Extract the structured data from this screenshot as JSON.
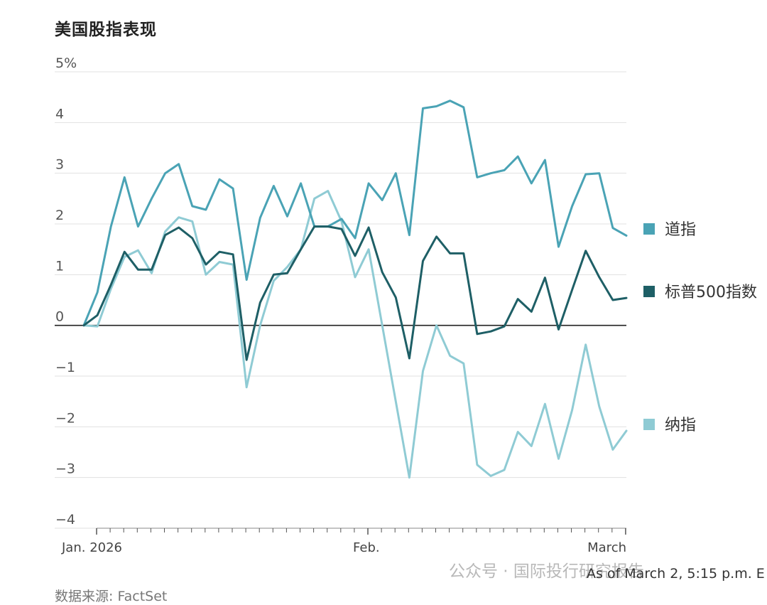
{
  "chart_data": {
    "type": "line",
    "title": "美国股指表现",
    "yticks": [
      {
        "value": 5,
        "label": "5%"
      },
      {
        "value": 4,
        "label": "4"
      },
      {
        "value": 3,
        "label": "3"
      },
      {
        "value": 2,
        "label": "2"
      },
      {
        "value": 1,
        "label": "1"
      },
      {
        "value": 0,
        "label": "0"
      },
      {
        "value": -1,
        "label": "−1"
      },
      {
        "value": -2,
        "label": "−2"
      },
      {
        "value": -3,
        "label": "−3"
      },
      {
        "value": -4,
        "label": "−4"
      }
    ],
    "ylim": [
      -4,
      5
    ],
    "x_tick_labels": [
      "Jan. 2026",
      "Feb.",
      "March"
    ],
    "grid": "horizontal",
    "series": [
      {
        "name": "道指",
        "color": "#4aa3b5",
        "values": [
          0,
          0.65,
          1.95,
          2.92,
          1.95,
          2.5,
          3.0,
          3.18,
          2.35,
          2.28,
          2.88,
          2.7,
          0.9,
          2.12,
          2.75,
          2.15,
          2.8,
          1.95,
          1.95,
          2.1,
          1.72,
          2.8,
          2.47,
          3.0,
          1.78,
          4.28,
          4.32,
          4.43,
          4.3,
          2.92,
          3.0,
          3.06,
          3.33,
          2.8,
          3.26,
          1.55,
          2.35,
          2.98,
          3.0,
          1.92,
          1.77
        ]
      },
      {
        "name": "标普500指数",
        "color": "#1e5f66",
        "values": [
          0,
          0.2,
          0.8,
          1.45,
          1.1,
          1.1,
          1.78,
          1.93,
          1.72,
          1.2,
          1.45,
          1.4,
          -0.68,
          0.45,
          1.0,
          1.03,
          1.5,
          1.95,
          1.95,
          1.9,
          1.37,
          1.93,
          1.05,
          0.55,
          -0.65,
          1.27,
          1.75,
          1.42,
          1.42,
          -0.17,
          -0.12,
          -0.02,
          0.52,
          0.27,
          0.94,
          -0.08,
          0.7,
          1.47,
          0.95,
          0.5,
          0.54
        ]
      },
      {
        "name": "纳指",
        "color": "#8fcbd4",
        "values": [
          0,
          -0.02,
          0.72,
          1.35,
          1.48,
          1.03,
          1.85,
          2.13,
          2.05,
          1.0,
          1.25,
          1.2,
          -1.22,
          0.0,
          0.88,
          1.15,
          1.5,
          2.5,
          2.65,
          2.05,
          0.95,
          1.5,
          0.0,
          -1.5,
          -3.0,
          -0.9,
          0.0,
          -0.6,
          -0.75,
          -2.75,
          -2.97,
          -2.85,
          -2.1,
          -2.38,
          -1.55,
          -2.63,
          -1.67,
          -0.38,
          -1.6,
          -2.45,
          -2.08
        ]
      }
    ]
  },
  "footer": {
    "source": "数据来源: FactSet",
    "as_of": "As of March 2, 5:15 p.m. E",
    "watermark": "公众号 · 国际投行研究报告"
  }
}
